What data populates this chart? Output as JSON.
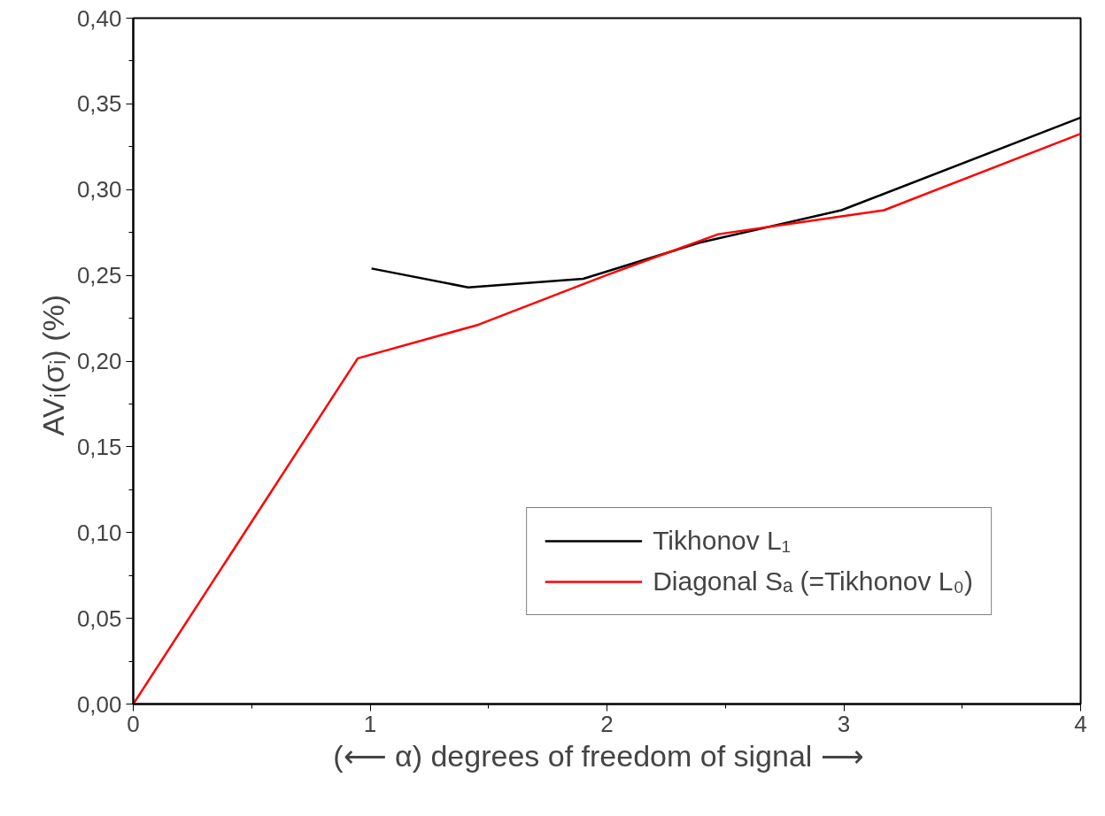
{
  "chart_data": {
    "type": "line",
    "xlabel": "(⟵ α)  degrees of freedom of signal  ⟶",
    "ylabel": "AVᵢ(σᵢ)  (%)",
    "xlim": [
      0,
      4
    ],
    "xticks": [
      0,
      1,
      2,
      3,
      4
    ],
    "ylim": [
      0,
      0.4
    ],
    "yticks": [
      {
        "value": 0,
        "label": "0,00"
      },
      {
        "value": 0.05,
        "label": "0,05"
      },
      {
        "value": 0.1,
        "label": "0,10"
      },
      {
        "value": 0.15,
        "label": "0,15"
      },
      {
        "value": 0.2,
        "label": "0,20"
      },
      {
        "value": 0.25,
        "label": "0,25"
      },
      {
        "value": 0.3,
        "label": "0,30"
      },
      {
        "value": 0.35,
        "label": "0,35"
      },
      {
        "value": 0.4,
        "label": "0,40"
      }
    ],
    "grid": false,
    "legend": "bottom right",
    "line_style": "solid",
    "marker": "none",
    "series": [
      {
        "name": "Tikhonov L₁",
        "color": "#000000",
        "x": [
          1.006,
          1.414,
          1.9,
          2.39,
          2.99,
          4.0
        ],
        "values": [
          0.254,
          0.243,
          0.248,
          0.269,
          0.288,
          0.342
        ]
      },
      {
        "name": "Diagonal Sₐ (=Tikhonov L₀)",
        "color": "#ff0000",
        "x": [
          0,
          0.948,
          1.457,
          1.996,
          2.47,
          3.17,
          4.0
        ],
        "values": [
          0,
          0.2016,
          0.2212,
          0.25,
          0.274,
          0.288,
          0.3326
        ]
      }
    ]
  }
}
